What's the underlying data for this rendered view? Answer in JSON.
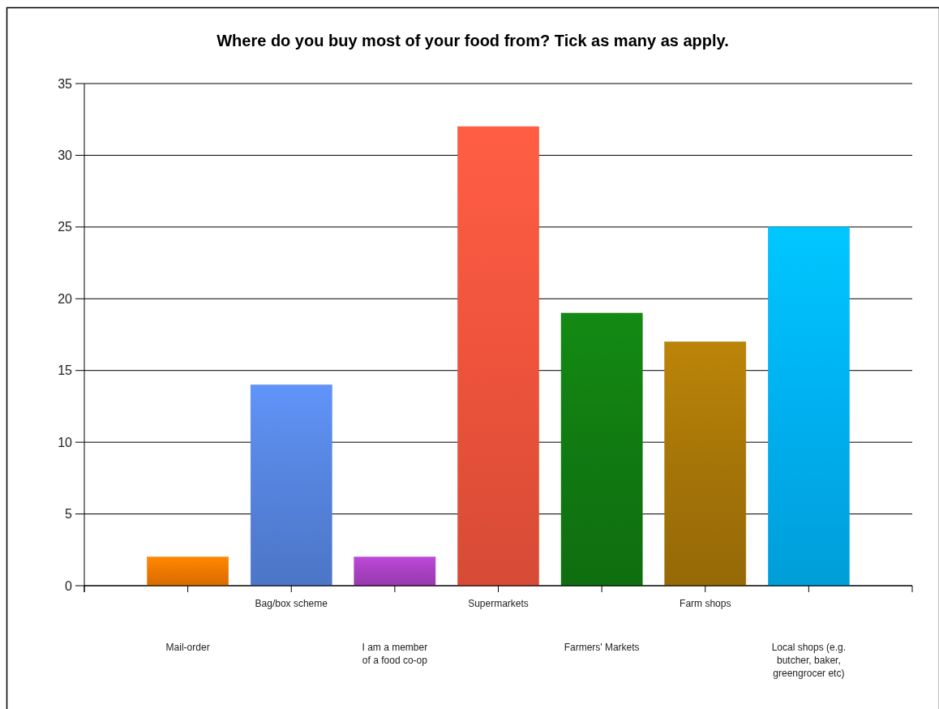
{
  "chart_data": {
    "type": "bar",
    "title": "Where do you buy most of your food from? Tick as many as apply.",
    "categories": [
      "Mail-order",
      "Bag/box scheme",
      "I am a member of a food co-op",
      "Supermarkets",
      "Farmers' Markets",
      "Farm shops",
      "Local shops (e.g. butcher, baker, greengrocer etc)"
    ],
    "values": [
      2,
      14,
      2,
      32,
      19,
      17,
      25
    ],
    "colors": [
      "#ee7800",
      "#5583dc",
      "#a840c0",
      "#ee533c",
      "#117a11",
      "#a67508",
      "#00b0f0"
    ],
    "ylim": [
      0,
      35
    ],
    "yticks": [
      0,
      5,
      10,
      15,
      20,
      25,
      30,
      35
    ],
    "grid": "y"
  }
}
